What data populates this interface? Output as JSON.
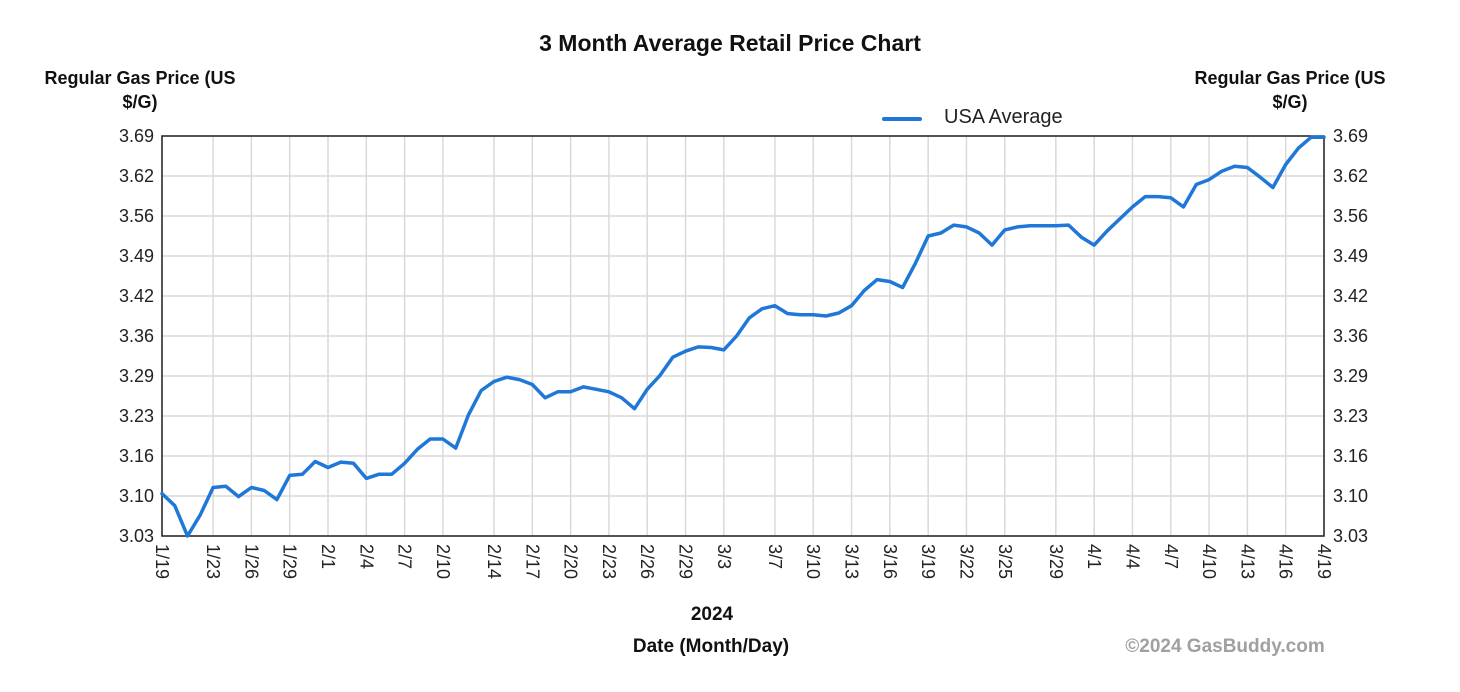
{
  "chart_data": {
    "type": "line",
    "title": "3 Month Average Retail Price Chart",
    "ylabel": "Regular Gas Price (US $/G)",
    "ylabel_left": "Regular Gas Price (US $/G)",
    "ylabel_right": "Regular Gas Price (US $/G)",
    "xlabel": "Date (Month/Day)",
    "year_label": "2024",
    "ylim": [
      3.03,
      3.69
    ],
    "yticks": [
      "3.69",
      "3.62",
      "3.56",
      "3.49",
      "3.42",
      "3.36",
      "3.29",
      "3.23",
      "3.16",
      "3.10",
      "3.03"
    ],
    "xticks": [
      "1/19",
      "1/23",
      "1/26",
      "1/29",
      "2/1",
      "2/4",
      "2/7",
      "2/10",
      "2/14",
      "2/17",
      "2/20",
      "2/23",
      "2/26",
      "2/29",
      "3/3",
      "3/7",
      "3/10",
      "3/13",
      "3/16",
      "3/19",
      "3/22",
      "3/25",
      "3/29",
      "4/1",
      "4/4",
      "4/7",
      "4/10",
      "4/13",
      "4/16",
      "4/19"
    ],
    "xrange": [
      "2024-01-19",
      "2024-04-19"
    ],
    "grid": true,
    "legend_position": "top-right",
    "colors": {
      "series": "#1f77d8",
      "grid": "#d9d9d9",
      "frame": "#222222"
    },
    "series": [
      {
        "name": "USA Average",
        "x": [
          "2024-01-19",
          "2024-01-20",
          "2024-01-21",
          "2024-01-22",
          "2024-01-23",
          "2024-01-24",
          "2024-01-25",
          "2024-01-26",
          "2024-01-27",
          "2024-01-28",
          "2024-01-29",
          "2024-01-30",
          "2024-01-31",
          "2024-02-01",
          "2024-02-02",
          "2024-02-03",
          "2024-02-04",
          "2024-02-05",
          "2024-02-06",
          "2024-02-07",
          "2024-02-08",
          "2024-02-09",
          "2024-02-10",
          "2024-02-11",
          "2024-02-12",
          "2024-02-13",
          "2024-02-14",
          "2024-02-15",
          "2024-02-16",
          "2024-02-17",
          "2024-02-18",
          "2024-02-19",
          "2024-02-20",
          "2024-02-21",
          "2024-02-22",
          "2024-02-23",
          "2024-02-24",
          "2024-02-25",
          "2024-02-26",
          "2024-02-27",
          "2024-02-28",
          "2024-02-29",
          "2024-03-01",
          "2024-03-02",
          "2024-03-03",
          "2024-03-04",
          "2024-03-05",
          "2024-03-06",
          "2024-03-07",
          "2024-03-08",
          "2024-03-09",
          "2024-03-10",
          "2024-03-11",
          "2024-03-12",
          "2024-03-13",
          "2024-03-14",
          "2024-03-15",
          "2024-03-16",
          "2024-03-17",
          "2024-03-18",
          "2024-03-19",
          "2024-03-20",
          "2024-03-21",
          "2024-03-22",
          "2024-03-23",
          "2024-03-24",
          "2024-03-25",
          "2024-03-26",
          "2024-03-27",
          "2024-03-28",
          "2024-03-29",
          "2024-03-30",
          "2024-03-31",
          "2024-04-01",
          "2024-04-02",
          "2024-04-03",
          "2024-04-04",
          "2024-04-05",
          "2024-04-06",
          "2024-04-07",
          "2024-04-08",
          "2024-04-09",
          "2024-04-10",
          "2024-04-11",
          "2024-04-12",
          "2024-04-13",
          "2024-04-14",
          "2024-04-15",
          "2024-04-16",
          "2024-04-17",
          "2024-04-18",
          "2024-04-19"
        ],
        "values": [
          3.1,
          3.08,
          3.03,
          3.065,
          3.11,
          3.112,
          3.095,
          3.11,
          3.105,
          3.09,
          3.13,
          3.132,
          3.153,
          3.143,
          3.152,
          3.15,
          3.125,
          3.132,
          3.132,
          3.15,
          3.173,
          3.19,
          3.19,
          3.175,
          3.23,
          3.27,
          3.285,
          3.292,
          3.288,
          3.28,
          3.258,
          3.268,
          3.268,
          3.276,
          3.272,
          3.268,
          3.258,
          3.24,
          3.272,
          3.295,
          3.325,
          3.335,
          3.342,
          3.341,
          3.337,
          3.36,
          3.39,
          3.405,
          3.41,
          3.397,
          3.395,
          3.395,
          3.393,
          3.398,
          3.41,
          3.435,
          3.453,
          3.45,
          3.44,
          3.48,
          3.525,
          3.53,
          3.543,
          3.54,
          3.53,
          3.51,
          3.535,
          3.54,
          3.542,
          3.542,
          3.542,
          3.543,
          3.523,
          3.51,
          3.533,
          3.553,
          3.573,
          3.59,
          3.59,
          3.588,
          3.573,
          3.61,
          3.618,
          3.632,
          3.64,
          3.638,
          3.622,
          3.605,
          3.643,
          3.67,
          3.688,
          3.688
        ]
      }
    ]
  },
  "copyright": "©2024 GasBuddy.com"
}
